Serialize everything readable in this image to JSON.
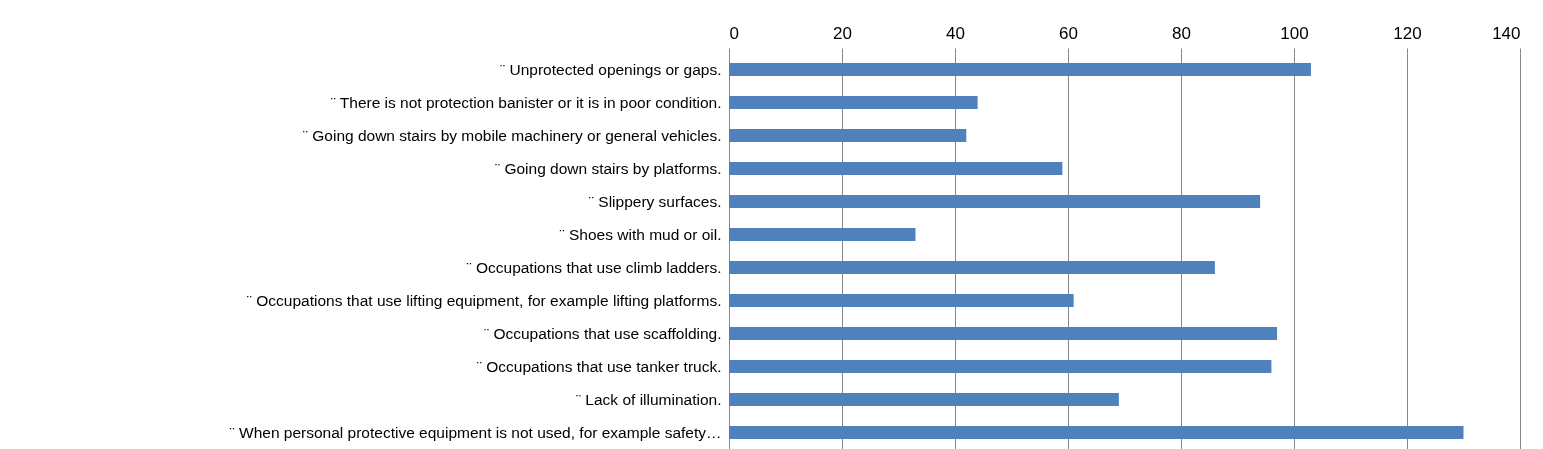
{
  "chart_data": {
    "type": "bar",
    "orientation": "horizontal",
    "categories": [
      "¨  Unprotected openings or gaps.",
      "¨  There is not protection banister or it is in poor condition.",
      "¨  Going down stairs by mobile machinery or general vehicles.",
      "¨  Going down stairs by platforms.",
      "¨  Slippery surfaces.",
      "¨  Shoes with mud or oil.",
      "¨  Occupations that use climb ladders.",
      "¨  Occupations that use lifting equipment, for example lifting platforms.",
      "¨  Occupations that use scaffolding.",
      "¨  Occupations that use tanker truck.",
      "¨  Lack of illumination.",
      "¨ When personal protective equipment is not used, for example safety…"
    ],
    "values": [
      103,
      44,
      42,
      59,
      94,
      33,
      86,
      61,
      97,
      96,
      69,
      130
    ],
    "color": "#4f81bd",
    "xlim": [
      0,
      140
    ],
    "xticks": [
      0,
      20,
      40,
      60,
      80,
      100,
      120,
      140
    ],
    "grid": "x"
  }
}
